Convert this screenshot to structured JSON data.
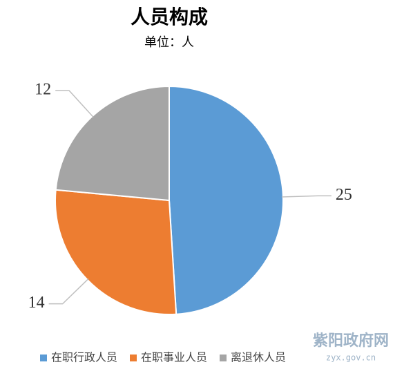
{
  "chart_data": {
    "type": "pie",
    "title": "人员构成",
    "subtitle": "单位：人",
    "categories": [
      "在职行政人员",
      "在职事业人员",
      "离退休人员"
    ],
    "values": [
      25,
      14,
      12
    ],
    "colors": [
      "#5b9bd5",
      "#ed7d31",
      "#a5a5a5"
    ],
    "legend": "bottom"
  },
  "watermark": {
    "name": "紫阳政府网",
    "url": "zyx.gov.cn"
  }
}
